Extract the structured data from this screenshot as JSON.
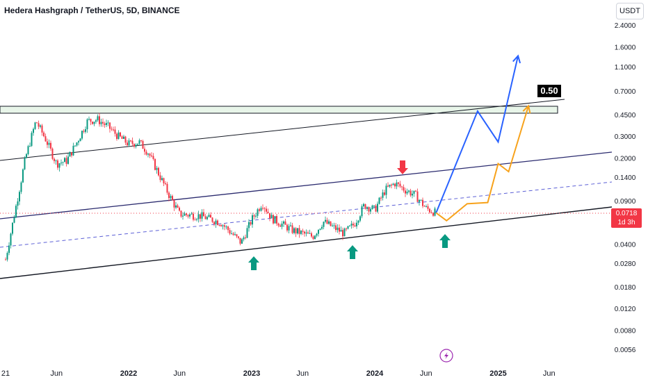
{
  "header": {
    "title": "Hedera Hashgraph / TetherUS, 5D, BINANCE",
    "currency": "USDT"
  },
  "price_tag": {
    "price": "0.0718",
    "countdown": "1d 3h"
  },
  "target": {
    "label": "0.50"
  },
  "colors": {
    "up": "#089981",
    "down": "#f23645",
    "projection_blue": "#2962ff",
    "projection_orange": "#f7a21b",
    "channel_line": "#131722",
    "mid_dashed": "#5b5fd6"
  },
  "icons": [
    "arrow-up-icon",
    "arrow-down-icon",
    "lightning-icon"
  ],
  "chart_data": {
    "type": "candlestick",
    "y_scale": "log",
    "yticks": [
      "2.4000",
      "1.6000",
      "1.1000",
      "0.7000",
      "0.4500",
      "0.3000",
      "0.2000",
      "0.1400",
      "0.0900",
      "0.0400",
      "0.0280",
      "0.0180",
      "0.0120",
      "0.0080",
      "0.0056"
    ],
    "xticks": [
      "21",
      "Jun",
      "2022",
      "Jun",
      "2023",
      "Jun",
      "2024",
      "Jun",
      "2025",
      "Jun"
    ],
    "last_price": 0.0718,
    "price_path": [
      [
        "2021-01",
        0.03
      ],
      [
        "2021-03",
        0.2
      ],
      [
        "2021-04",
        0.4
      ],
      [
        "2021-05",
        0.28
      ],
      [
        "2021-06",
        0.18
      ],
      [
        "2021-07",
        0.19
      ],
      [
        "2021-08",
        0.27
      ],
      [
        "2021-09",
        0.4
      ],
      [
        "2021-10",
        0.41
      ],
      [
        "2021-11",
        0.36
      ],
      [
        "2021-12",
        0.3
      ],
      [
        "2022-01",
        0.26
      ],
      [
        "2022-02",
        0.27
      ],
      [
        "2022-03",
        0.22
      ],
      [
        "2022-05",
        0.1
      ],
      [
        "2022-06",
        0.07
      ],
      [
        "2022-08",
        0.068
      ],
      [
        "2022-10",
        0.06
      ],
      [
        "2022-12",
        0.041
      ],
      [
        "2023-01",
        0.063
      ],
      [
        "2023-02",
        0.087
      ],
      [
        "2023-03",
        0.065
      ],
      [
        "2023-05",
        0.052
      ],
      [
        "2023-07",
        0.046
      ],
      [
        "2023-08",
        0.061
      ],
      [
        "2023-10",
        0.049
      ],
      [
        "2023-11",
        0.058
      ],
      [
        "2023-12",
        0.083
      ],
      [
        "2024-01",
        0.076
      ],
      [
        "2024-02",
        0.11
      ],
      [
        "2024-03",
        0.125
      ],
      [
        "2024-04",
        0.11
      ],
      [
        "2024-05",
        0.1
      ],
      [
        "2024-06",
        0.078
      ],
      [
        "2024-07",
        0.0718
      ]
    ],
    "projection_blue": [
      [
        "2024-07",
        0.0718
      ],
      [
        "2024-11",
        0.48
      ],
      [
        "2025-01",
        0.27
      ],
      [
        "2025-03",
        1.35
      ]
    ],
    "projection_orange": [
      [
        "2024-07",
        0.0718
      ],
      [
        "2024-08",
        0.062
      ],
      [
        "2024-10",
        0.085
      ],
      [
        "2024-12",
        0.087
      ],
      [
        "2025-01",
        0.18
      ],
      [
        "2025-02",
        0.155
      ],
      [
        "2025-04",
        0.53
      ]
    ],
    "resistance_zone": [
      0.45,
      0.5
    ],
    "target_level": 0.5,
    "markers": {
      "up_arrows": [
        "2022-12",
        "2023-11",
        "2024-07"
      ],
      "down_arrows": [
        "2024-03"
      ]
    }
  }
}
